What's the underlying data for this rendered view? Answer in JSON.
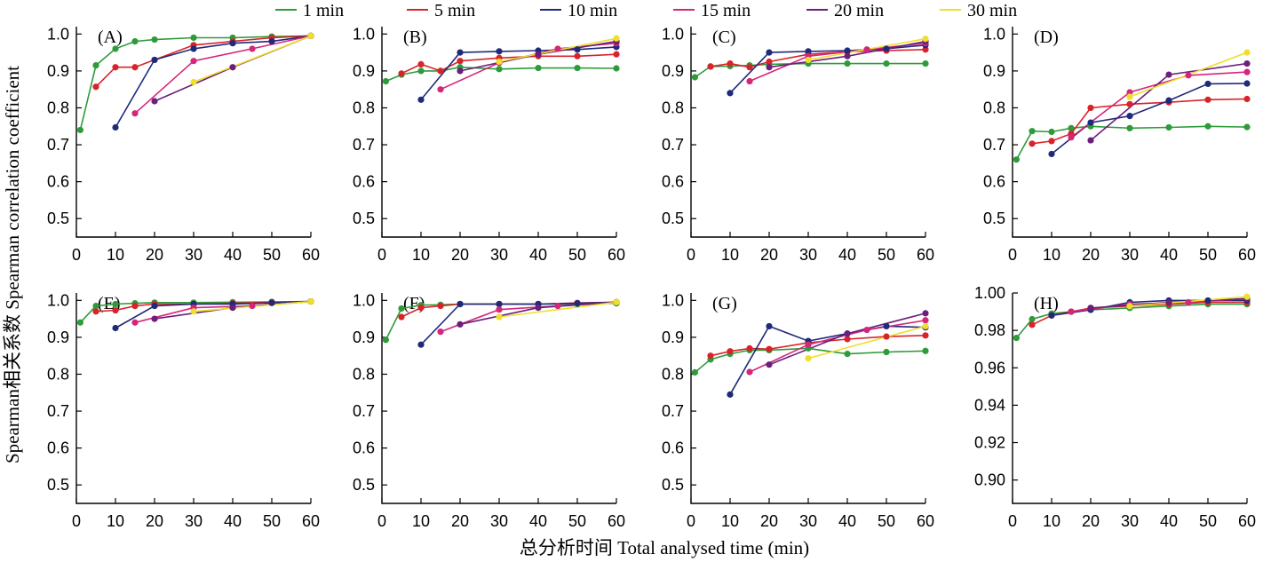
{
  "figure": {
    "ylabel": "Spearman相关系数 Spearman correlation coefficient",
    "xlabel": "总分析时间 Total analysed time (min)"
  },
  "legend": [
    {
      "name": "1 min",
      "color": "#2e9b3a"
    },
    {
      "name": "5 min",
      "color": "#d8232a"
    },
    {
      "name": "10 min",
      "color": "#1f2a7a"
    },
    {
      "name": "15 min",
      "color": "#d6267a"
    },
    {
      "name": "20 min",
      "color": "#6b1f7c"
    },
    {
      "name": "30 min",
      "color": "#eedf2a"
    }
  ],
  "chart_data": [
    {
      "type": "line",
      "panel": "(A)",
      "xlim": [
        0,
        60
      ],
      "ylim": [
        0.45,
        1.02
      ],
      "xticks": [
        0,
        10,
        20,
        30,
        40,
        50,
        60
      ],
      "yticks": [
        0.5,
        0.6,
        0.7,
        0.8,
        0.9,
        1.0
      ],
      "ytick_labels": [
        "0.5",
        "0.6",
        "0.7",
        "0.8",
        "0.9",
        "1.0"
      ],
      "series": [
        {
          "name": "1 min",
          "x": [
            1,
            5,
            10,
            15,
            20,
            30,
            40,
            50,
            60
          ],
          "y": [
            0.74,
            0.915,
            0.96,
            0.98,
            0.985,
            0.99,
            0.99,
            0.993,
            0.995
          ]
        },
        {
          "name": "5 min",
          "x": [
            5,
            10,
            15,
            20,
            30,
            40,
            50,
            60
          ],
          "y": [
            0.857,
            0.91,
            0.91,
            0.93,
            0.97,
            0.98,
            0.99,
            0.995
          ]
        },
        {
          "name": "10 min",
          "x": [
            10,
            20,
            30,
            40,
            50,
            60
          ],
          "y": [
            0.747,
            0.93,
            0.96,
            0.975,
            0.98,
            0.995
          ]
        },
        {
          "name": "15 min",
          "x": [
            15,
            30,
            45,
            60
          ],
          "y": [
            0.785,
            0.927,
            0.96,
            0.995
          ]
        },
        {
          "name": "20 min",
          "x": [
            20,
            40,
            60
          ],
          "y": [
            0.818,
            0.91,
            0.995
          ]
        },
        {
          "name": "30 min",
          "x": [
            30,
            60
          ],
          "y": [
            0.87,
            0.995
          ]
        }
      ]
    },
    {
      "type": "line",
      "panel": "(B)",
      "xlim": [
        0,
        60
      ],
      "ylim": [
        0.45,
        1.02
      ],
      "xticks": [
        0,
        10,
        20,
        30,
        40,
        50,
        60
      ],
      "yticks": [
        0.5,
        0.6,
        0.7,
        0.8,
        0.9,
        1.0
      ],
      "ytick_labels": [
        "0.5",
        "0.6",
        "0.7",
        "0.8",
        "0.9",
        "1.0"
      ],
      "series": [
        {
          "name": "1 min",
          "x": [
            1,
            5,
            10,
            15,
            20,
            30,
            40,
            50,
            60
          ],
          "y": [
            0.872,
            0.89,
            0.9,
            0.9,
            0.91,
            0.905,
            0.908,
            0.908,
            0.907
          ]
        },
        {
          "name": "5 min",
          "x": [
            5,
            10,
            15,
            20,
            30,
            40,
            50,
            60
          ],
          "y": [
            0.893,
            0.918,
            0.9,
            0.927,
            0.935,
            0.94,
            0.94,
            0.945
          ]
        },
        {
          "name": "10 min",
          "x": [
            10,
            20,
            30,
            40,
            50,
            60
          ],
          "y": [
            0.822,
            0.95,
            0.953,
            0.955,
            0.958,
            0.965
          ]
        },
        {
          "name": "15 min",
          "x": [
            15,
            30,
            45,
            60
          ],
          "y": [
            0.85,
            0.922,
            0.96,
            0.975
          ]
        },
        {
          "name": "20 min",
          "x": [
            20,
            40,
            60
          ],
          "y": [
            0.9,
            0.945,
            0.98
          ]
        },
        {
          "name": "30 min",
          "x": [
            30,
            60
          ],
          "y": [
            0.925,
            0.988
          ]
        }
      ]
    },
    {
      "type": "line",
      "panel": "(C)",
      "xlim": [
        0,
        60
      ],
      "ylim": [
        0.45,
        1.02
      ],
      "xticks": [
        0,
        10,
        20,
        30,
        40,
        50,
        60
      ],
      "yticks": [
        0.5,
        0.6,
        0.7,
        0.8,
        0.9,
        1.0
      ],
      "ytick_labels": [
        "0.5",
        "0.6",
        "0.7",
        "0.8",
        "0.9",
        "1.0"
      ],
      "series": [
        {
          "name": "1 min",
          "x": [
            1,
            5,
            10,
            15,
            20,
            30,
            40,
            50,
            60
          ],
          "y": [
            0.883,
            0.912,
            0.913,
            0.915,
            0.918,
            0.92,
            0.92,
            0.92,
            0.92
          ]
        },
        {
          "name": "5 min",
          "x": [
            5,
            10,
            15,
            20,
            30,
            40,
            50,
            60
          ],
          "y": [
            0.912,
            0.92,
            0.91,
            0.925,
            0.945,
            0.952,
            0.955,
            0.958
          ]
        },
        {
          "name": "10 min",
          "x": [
            10,
            20,
            30,
            40,
            50,
            60
          ],
          "y": [
            0.84,
            0.95,
            0.953,
            0.955,
            0.96,
            0.97
          ]
        },
        {
          "name": "15 min",
          "x": [
            15,
            30,
            45,
            60
          ],
          "y": [
            0.872,
            0.94,
            0.958,
            0.975
          ]
        },
        {
          "name": "20 min",
          "x": [
            20,
            40,
            60
          ],
          "y": [
            0.91,
            0.94,
            0.98
          ]
        },
        {
          "name": "30 min",
          "x": [
            30,
            60
          ],
          "y": [
            0.93,
            0.987
          ]
        }
      ]
    },
    {
      "type": "line",
      "panel": "(D)",
      "xlim": [
        0,
        60
      ],
      "ylim": [
        0.45,
        1.02
      ],
      "xticks": [
        0,
        10,
        20,
        30,
        40,
        50,
        60
      ],
      "yticks": [
        0.5,
        0.6,
        0.7,
        0.8,
        0.9,
        1.0
      ],
      "ytick_labels": [
        "0.5",
        "0.6",
        "0.7",
        "0.8",
        "0.9",
        "1.0"
      ],
      "series": [
        {
          "name": "1 min",
          "x": [
            1,
            5,
            10,
            15,
            20,
            30,
            40,
            50,
            60
          ],
          "y": [
            0.66,
            0.737,
            0.735,
            0.745,
            0.75,
            0.745,
            0.747,
            0.75,
            0.748
          ]
        },
        {
          "name": "5 min",
          "x": [
            5,
            10,
            15,
            20,
            30,
            40,
            50,
            60
          ],
          "y": [
            0.703,
            0.71,
            0.73,
            0.8,
            0.81,
            0.815,
            0.822,
            0.824
          ]
        },
        {
          "name": "10 min",
          "x": [
            10,
            20,
            30,
            40,
            50,
            60
          ],
          "y": [
            0.675,
            0.76,
            0.778,
            0.82,
            0.865,
            0.866
          ]
        },
        {
          "name": "15 min",
          "x": [
            15,
            30,
            45,
            60
          ],
          "y": [
            0.72,
            0.842,
            0.888,
            0.897
          ]
        },
        {
          "name": "20 min",
          "x": [
            20,
            40,
            60
          ],
          "y": [
            0.712,
            0.89,
            0.92
          ]
        },
        {
          "name": "30 min",
          "x": [
            30,
            60
          ],
          "y": [
            0.83,
            0.95
          ]
        }
      ]
    },
    {
      "type": "line",
      "panel": "(E)",
      "xlim": [
        0,
        60
      ],
      "ylim": [
        0.45,
        1.02
      ],
      "xticks": [
        0,
        10,
        20,
        30,
        40,
        50,
        60
      ],
      "yticks": [
        0.5,
        0.6,
        0.7,
        0.8,
        0.9,
        1.0
      ],
      "ytick_labels": [
        "0.5",
        "0.6",
        "0.7",
        "0.8",
        "0.9",
        "1.0"
      ],
      "series": [
        {
          "name": "1 min",
          "x": [
            1,
            5,
            10,
            15,
            20,
            30,
            40,
            50,
            60
          ],
          "y": [
            0.94,
            0.985,
            0.99,
            0.992,
            0.994,
            0.994,
            0.995,
            0.996,
            0.997
          ]
        },
        {
          "name": "5 min",
          "x": [
            5,
            10,
            15,
            20,
            30,
            40,
            50,
            60
          ],
          "y": [
            0.97,
            0.973,
            0.985,
            0.99,
            0.99,
            0.992,
            0.995,
            0.997
          ]
        },
        {
          "name": "10 min",
          "x": [
            10,
            20,
            30,
            40,
            50,
            60
          ],
          "y": [
            0.925,
            0.985,
            0.99,
            0.99,
            0.993,
            0.997
          ]
        },
        {
          "name": "15 min",
          "x": [
            15,
            30,
            45,
            60
          ],
          "y": [
            0.94,
            0.98,
            0.985,
            0.997
          ]
        },
        {
          "name": "20 min",
          "x": [
            20,
            40,
            60
          ],
          "y": [
            0.95,
            0.98,
            0.997
          ]
        },
        {
          "name": "30 min",
          "x": [
            30,
            60
          ],
          "y": [
            0.97,
            0.997
          ]
        }
      ]
    },
    {
      "type": "line",
      "panel": "(F)",
      "xlim": [
        0,
        60
      ],
      "ylim": [
        0.45,
        1.02
      ],
      "xticks": [
        0,
        10,
        20,
        30,
        40,
        50,
        60
      ],
      "yticks": [
        0.5,
        0.6,
        0.7,
        0.8,
        0.9,
        1.0
      ],
      "ytick_labels": [
        "0.5",
        "0.6",
        "0.7",
        "0.8",
        "0.9",
        "1.0"
      ],
      "series": [
        {
          "name": "1 min",
          "x": [
            1,
            5,
            10,
            15,
            20,
            30,
            40,
            50,
            60
          ],
          "y": [
            0.893,
            0.978,
            0.987,
            0.988,
            0.99,
            0.99,
            0.99,
            0.99,
            0.992
          ]
        },
        {
          "name": "5 min",
          "x": [
            5,
            10,
            15,
            20,
            30,
            40,
            50,
            60
          ],
          "y": [
            0.955,
            0.98,
            0.985,
            0.99,
            0.99,
            0.99,
            0.993,
            0.995
          ]
        },
        {
          "name": "10 min",
          "x": [
            10,
            20,
            30,
            40,
            50,
            60
          ],
          "y": [
            0.88,
            0.99,
            0.99,
            0.99,
            0.992,
            0.995
          ]
        },
        {
          "name": "15 min",
          "x": [
            15,
            30,
            45,
            60
          ],
          "y": [
            0.915,
            0.975,
            0.985,
            0.995
          ]
        },
        {
          "name": "20 min",
          "x": [
            20,
            40,
            60
          ],
          "y": [
            0.935,
            0.98,
            0.995
          ]
        },
        {
          "name": "30 min",
          "x": [
            30,
            60
          ],
          "y": [
            0.955,
            0.995
          ]
        }
      ]
    },
    {
      "type": "line",
      "panel": "(G)",
      "xlim": [
        0,
        60
      ],
      "ylim": [
        0.45,
        1.02
      ],
      "xticks": [
        0,
        10,
        20,
        30,
        40,
        50,
        60
      ],
      "yticks": [
        0.5,
        0.6,
        0.7,
        0.8,
        0.9,
        1.0
      ],
      "ytick_labels": [
        "0.5",
        "0.6",
        "0.7",
        "0.8",
        "0.9",
        "1.0"
      ],
      "series": [
        {
          "name": "1 min",
          "x": [
            1,
            5,
            10,
            15,
            20,
            30,
            40,
            50,
            60
          ],
          "y": [
            0.805,
            0.84,
            0.855,
            0.865,
            0.865,
            0.87,
            0.855,
            0.86,
            0.863
          ]
        },
        {
          "name": "5 min",
          "x": [
            5,
            10,
            15,
            20,
            30,
            40,
            50,
            60
          ],
          "y": [
            0.85,
            0.862,
            0.87,
            0.868,
            0.885,
            0.895,
            0.902,
            0.905
          ]
        },
        {
          "name": "10 min",
          "x": [
            10,
            20,
            30,
            40,
            50,
            60
          ],
          "y": [
            0.745,
            0.93,
            0.89,
            0.91,
            0.93,
            0.927
          ]
        },
        {
          "name": "15 min",
          "x": [
            15,
            30,
            45,
            60
          ],
          "y": [
            0.806,
            0.88,
            0.92,
            0.946
          ]
        },
        {
          "name": "20 min",
          "x": [
            20,
            40,
            60
          ],
          "y": [
            0.826,
            0.91,
            0.965
          ]
        },
        {
          "name": "30 min",
          "x": [
            30,
            60
          ],
          "y": [
            0.843,
            0.93
          ]
        }
      ]
    },
    {
      "type": "line",
      "panel": "(H)",
      "xlim": [
        0,
        60
      ],
      "ylim": [
        0.8875,
        1.0
      ],
      "xticks": [
        0,
        10,
        20,
        30,
        40,
        50,
        60
      ],
      "yticks": [
        0.9,
        0.92,
        0.94,
        0.96,
        0.98,
        1.0
      ],
      "ytick_labels": [
        "0.90",
        "0.92",
        "0.94",
        "0.96",
        "0.98",
        "1.00"
      ],
      "series": [
        {
          "name": "1 min",
          "x": [
            1,
            5,
            10,
            15,
            20,
            30,
            40,
            50,
            60
          ],
          "y": [
            0.976,
            0.986,
            0.989,
            0.99,
            0.991,
            0.992,
            0.993,
            0.994,
            0.994
          ]
        },
        {
          "name": "5 min",
          "x": [
            5,
            10,
            15,
            20,
            30,
            40,
            50,
            60
          ],
          "y": [
            0.983,
            0.988,
            0.99,
            0.992,
            0.993,
            0.994,
            0.995,
            0.995
          ]
        },
        {
          "name": "10 min",
          "x": [
            10,
            20,
            30,
            40,
            50,
            60
          ],
          "y": [
            0.988,
            0.991,
            0.995,
            0.996,
            0.996,
            0.996
          ]
        },
        {
          "name": "15 min",
          "x": [
            15,
            30,
            45,
            60
          ],
          "y": [
            0.99,
            0.994,
            0.995,
            0.997
          ]
        },
        {
          "name": "20 min",
          "x": [
            20,
            40,
            60
          ],
          "y": [
            0.992,
            0.995,
            0.997
          ]
        },
        {
          "name": "30 min",
          "x": [
            30,
            60
          ],
          "y": [
            0.993,
            0.998
          ]
        }
      ]
    }
  ]
}
